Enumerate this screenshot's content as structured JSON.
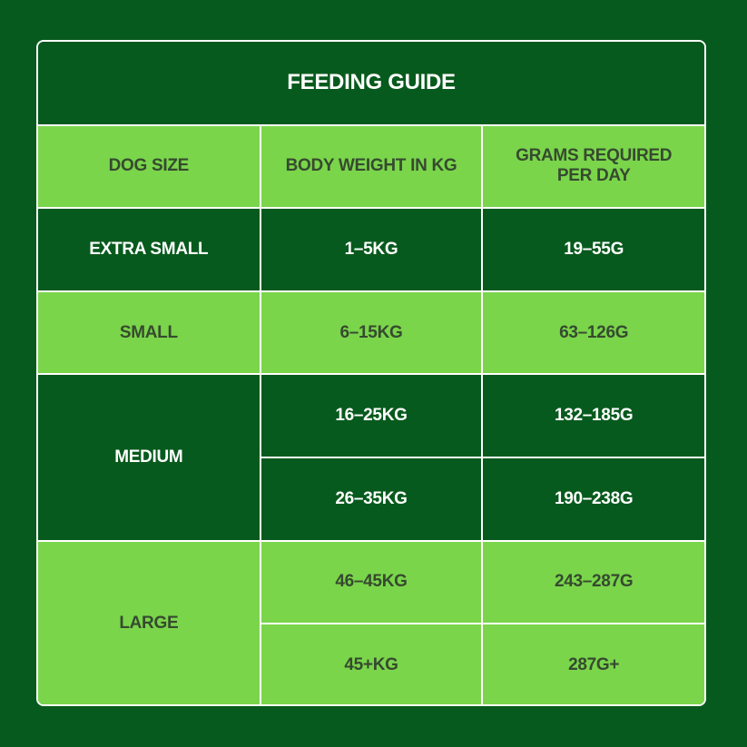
{
  "table": {
    "title": "FEEDING GUIDE",
    "headers": [
      "DOG SIZE",
      "BODY WEIGHT IN KG",
      "GRAMS REQUIRED PER DAY"
    ],
    "groups": [
      {
        "size": "EXTRA SMALL",
        "rows": [
          [
            "1–5KG",
            "19–55G"
          ]
        ]
      },
      {
        "size": "SMALL",
        "rows": [
          [
            "6–15KG",
            "63–126G"
          ]
        ]
      },
      {
        "size": "MEDIUM",
        "rows": [
          [
            "16–25KG",
            "132–185G"
          ],
          [
            "26–35KG",
            "190–238G"
          ]
        ]
      },
      {
        "size": "LARGE",
        "rows": [
          [
            "46–45KG",
            "243–287G"
          ],
          [
            "45+KG",
            "287G+"
          ]
        ]
      }
    ]
  }
}
